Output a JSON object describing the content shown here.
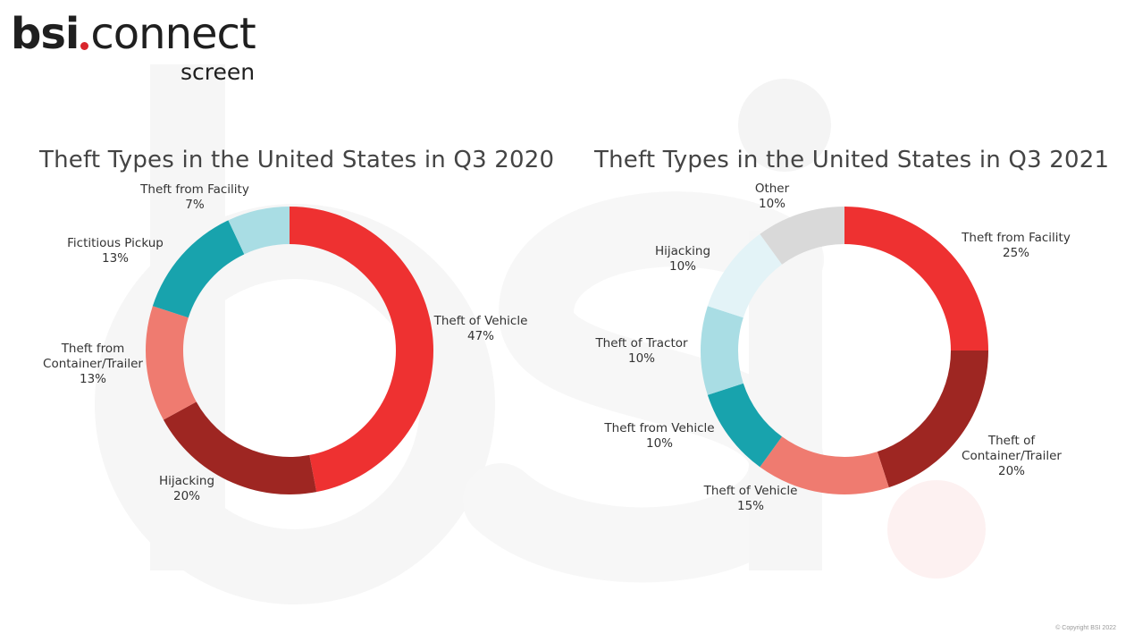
{
  "logo": {
    "brand": "bsi",
    "product": "connect",
    "sub": "screen",
    "accent": "#d9252c"
  },
  "copyright": "© Copyright BSI 2022",
  "chart_data": [
    {
      "type": "pie",
      "donut": true,
      "title": "Theft Types in the United States in Q3 2020",
      "slices": [
        {
          "label": "Theft of Vehicle",
          "value": 47,
          "value_label": "47%",
          "color": "#ee3131"
        },
        {
          "label": "Hijacking",
          "value": 20,
          "value_label": "20%",
          "color": "#9e2622"
        },
        {
          "label": "Theft from\nContainer/Trailer",
          "value": 13,
          "value_label": "13%",
          "color": "#ef7b70"
        },
        {
          "label": "Fictitious Pickup",
          "value": 13,
          "value_label": "13%",
          "color": "#18a3ad"
        },
        {
          "label": "Theft from Facility",
          "value": 7,
          "value_label": "7%",
          "color": "#a9dde4"
        }
      ]
    },
    {
      "type": "pie",
      "donut": true,
      "title": "Theft Types in the United States in Q3 2021",
      "slices": [
        {
          "label": "Theft from Facility",
          "value": 25,
          "value_label": "25%",
          "color": "#ee3131"
        },
        {
          "label": "Theft of\nContainer/Trailer",
          "value": 20,
          "value_label": "20%",
          "color": "#9e2622"
        },
        {
          "label": "Theft of Vehicle",
          "value": 15,
          "value_label": "15%",
          "color": "#ef7b70"
        },
        {
          "label": "Theft from Vehicle",
          "value": 10,
          "value_label": "10%",
          "color": "#18a3ad"
        },
        {
          "label": "Theft of Tractor",
          "value": 10,
          "value_label": "10%",
          "color": "#a9dde4"
        },
        {
          "label": "Hijacking",
          "value": 10,
          "value_label": "10%",
          "color": "#e3f3f7"
        },
        {
          "label": "Other",
          "value": 10,
          "value_label": "10%",
          "color": "#d9d9d9"
        }
      ]
    }
  ]
}
